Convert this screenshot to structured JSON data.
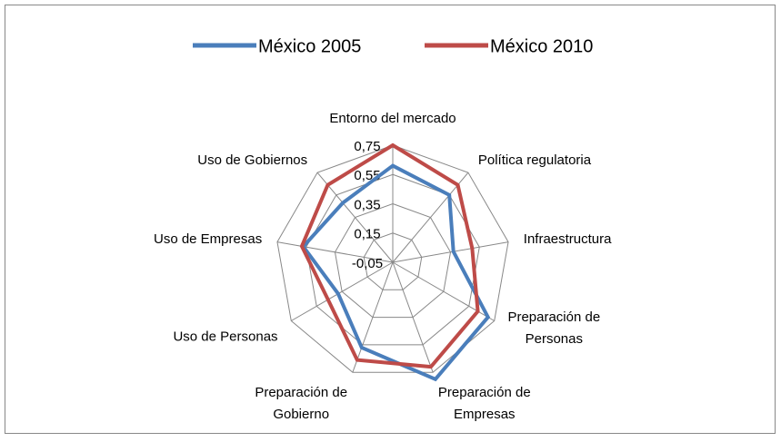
{
  "chart_data": {
    "type": "radar",
    "categories": [
      "Entorno del mercado",
      "Política regulatoria",
      "Infraestructura",
      "Preparación de\nPersonas",
      "Preparación de\nEmpresas",
      "Preparación de\nGobierno",
      "Uso de Personas",
      "Uso de Empresas",
      "Uso de Gobiernos"
    ],
    "series": [
      {
        "name": "México 2005",
        "color": "#4a7ebb",
        "values": [
          0.61,
          0.55,
          0.37,
          0.7,
          0.8,
          0.57,
          0.38,
          0.57,
          0.48
        ]
      },
      {
        "name": "México 2010",
        "color": "#be4b48",
        "values": [
          0.75,
          0.64,
          0.5,
          0.62,
          0.71,
          0.66,
          0.46,
          0.58,
          0.64
        ]
      }
    ],
    "ylim": [
      -0.05,
      0.75
    ],
    "yticks": [
      {
        "value": -0.05,
        "label": "-0,05"
      },
      {
        "value": 0.15,
        "label": "0,15"
      },
      {
        "value": 0.35,
        "label": "0,35"
      },
      {
        "value": 0.55,
        "label": "0,55"
      },
      {
        "value": 0.75,
        "label": "0,75"
      }
    ],
    "grid": true,
    "legend": "top"
  }
}
